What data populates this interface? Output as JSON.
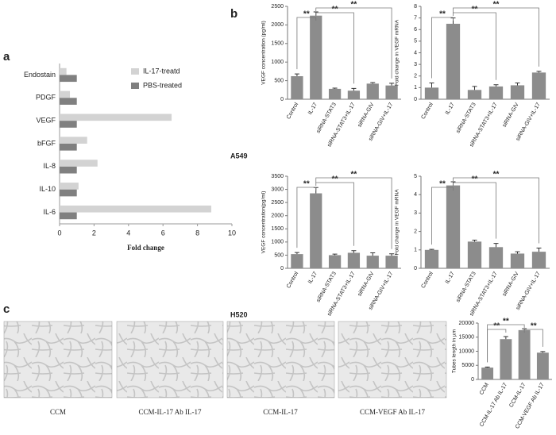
{
  "panels": {
    "a": "a",
    "b": "b",
    "c": "c"
  },
  "row_labels": [
    "A549",
    "H520"
  ],
  "image_captions": [
    "CCM",
    "CCM-IL-17 Ab IL-17",
    "CCM-IL-17",
    "CCM-VEGF Ab IL-17"
  ],
  "chart_data": [
    {
      "type": "hbar",
      "categories": [
        "Endostain",
        "PDGF",
        "VEGF",
        "bFGF",
        "IL-8",
        "IL-10",
        "IL-6"
      ],
      "series": [
        {
          "name": "IL-17-treatd",
          "color": "#d3d3d3",
          "values": [
            0.4,
            0.6,
            6.5,
            1.6,
            2.2,
            1.1,
            8.8
          ]
        },
        {
          "name": "PBS-treated",
          "color": "#808080",
          "values": [
            1,
            1,
            1,
            1,
            1,
            1,
            1
          ]
        }
      ],
      "xlabel": "Fold change",
      "xlim": [
        0,
        10
      ],
      "xticks": [
        0,
        2,
        4,
        6,
        8,
        10
      ]
    },
    {
      "type": "bar",
      "categories": [
        "Control",
        "IL-17",
        "siRNA-STAT3",
        "siRNA-STAT3+IL-17",
        "siRNA-GIV",
        "siRNA-GIV+IL-17"
      ],
      "values": [
        620,
        2250,
        280,
        230,
        420,
        370
      ],
      "errors": [
        60,
        100,
        20,
        60,
        30,
        60
      ],
      "color": "#8c8c8c",
      "ylabel": "VEGF concentration (pg/ml)",
      "ylim": [
        0,
        2500
      ],
      "yticks": [
        0,
        500,
        1000,
        1500,
        2000,
        2500
      ],
      "annotations": [
        "**",
        "**",
        "**"
      ]
    },
    {
      "type": "bar",
      "categories": [
        "Control",
        "IL-17",
        "siRNA-STAT3",
        "siRNA-STAT3+IL-17",
        "siRNA-GIV",
        "siRNA-GIV+IL-17"
      ],
      "values": [
        1,
        6.5,
        0.8,
        1.1,
        1.2,
        2.3
      ],
      "errors": [
        0.4,
        0.5,
        0.3,
        0.15,
        0.2,
        0.1
      ],
      "color": "#8c8c8c",
      "ylabel": "Fold change in VEGF mRNA",
      "ylim": [
        0,
        8
      ],
      "yticks": [
        0,
        1,
        2,
        3,
        4,
        5,
        6,
        7,
        8
      ],
      "annotations": [
        "**",
        "**",
        "**"
      ]
    },
    {
      "type": "bar",
      "categories": [
        "Control",
        "IL-17",
        "siRNA-STAT3",
        "siRNA-STAT3+IL-17",
        "siRNA-GIV",
        "siRNA-GIV+IL-17"
      ],
      "values": [
        540,
        2850,
        500,
        590,
        480,
        480
      ],
      "errors": [
        60,
        220,
        40,
        80,
        110,
        70
      ],
      "color": "#8c8c8c",
      "ylabel": "VEGF concentration(pg/ml)",
      "ylim": [
        0,
        3500
      ],
      "yticks": [
        0,
        500,
        1000,
        1500,
        2000,
        2500,
        3000,
        3500
      ],
      "annotations": [
        "**",
        "**",
        "**"
      ]
    },
    {
      "type": "bar",
      "categories": [
        "Control",
        "IL-17",
        "siRNA-STAT3",
        "siRNA-STAT3+IL-17",
        "siRNA-GIV",
        "siRNA-GIV+IL-17"
      ],
      "values": [
        1,
        4.5,
        1.45,
        1.15,
        0.8,
        0.9
      ],
      "errors": [
        0.03,
        0.2,
        0.08,
        0.2,
        0.1,
        0.2
      ],
      "color": "#8c8c8c",
      "ylabel": "Fold change in VEGF mRNA",
      "ylim": [
        0,
        5
      ],
      "yticks": [
        0,
        1,
        2,
        3,
        4,
        5
      ],
      "annotations": [
        "**",
        "**",
        "**"
      ]
    },
    {
      "type": "bar",
      "categories": [
        "CCM",
        "CCM-IL-17 Ab IL-17",
        "CCM-IL-17",
        "CCM-VEGF Ab IL-17"
      ],
      "values": [
        4200,
        14300,
        17500,
        9500
      ],
      "errors": [
        200,
        900,
        500,
        400
      ],
      "color": "#8c8c8c",
      "ylabel": "Tubes length in µm",
      "ylim": [
        0,
        20000
      ],
      "yticks": [
        0,
        5000,
        10000,
        15000,
        20000
      ],
      "annotations": [
        "**",
        "**",
        "**"
      ]
    }
  ]
}
